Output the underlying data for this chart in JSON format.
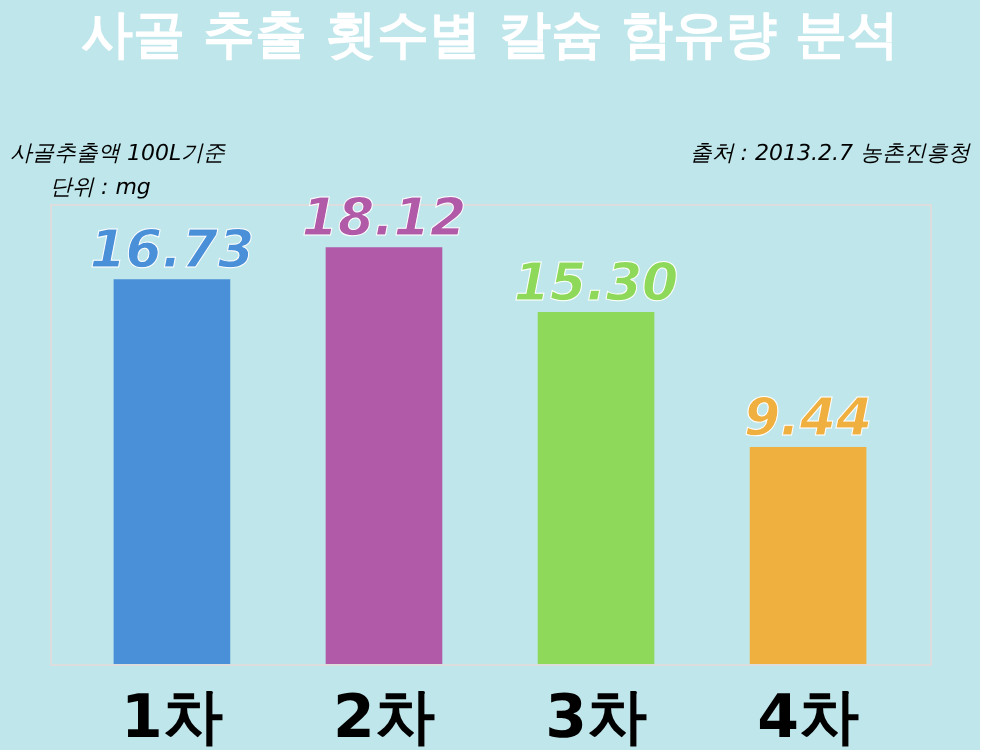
{
  "chart_data": {
    "type": "bar",
    "title": "사골 추출 횟수별 칼슘 함유량 분석",
    "annotations": [
      "사골추출액 100L기준",
      "단위 : mg",
      "출처 : 2013.2.7 농촌진흥청"
    ],
    "categories": [
      "1차",
      "2차",
      "3차",
      "4차"
    ],
    "values": [
      16.73,
      18.12,
      15.3,
      9.44
    ],
    "value_labels": [
      "16.73",
      "18.12",
      "15.30",
      "9.44"
    ],
    "colors": [
      "#4a90d8",
      "#b05aa8",
      "#8ed85a",
      "#f0b040"
    ],
    "grid": false
  }
}
